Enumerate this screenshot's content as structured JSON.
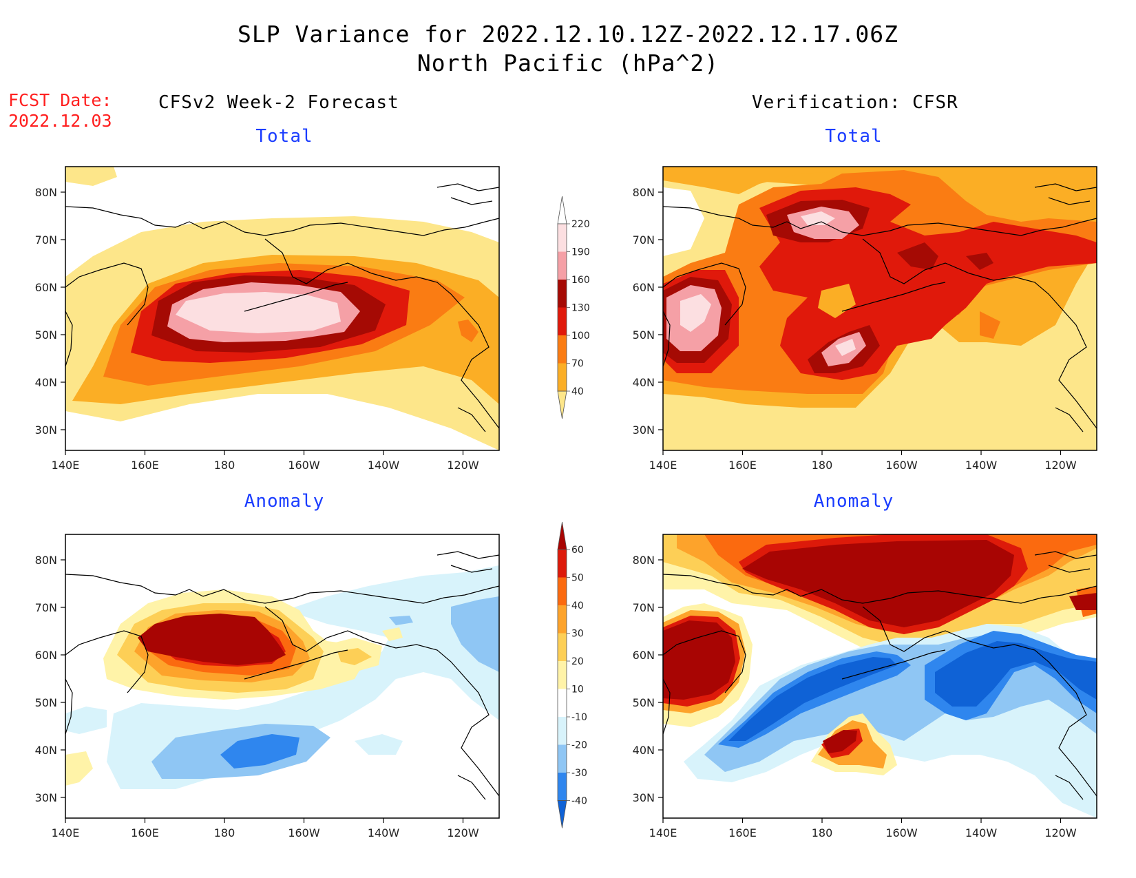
{
  "title": {
    "line1": "SLP Variance for 2022.12.10.12Z-2022.12.17.06Z",
    "line2": "North Pacific (hPa^2)"
  },
  "fcst": {
    "label": "FCST Date:",
    "date": "2022.12.03"
  },
  "columns": {
    "left": "CFSv2 Week-2 Forecast",
    "right": "Verification: CFSR"
  },
  "panels": {
    "fcst_total": "Total",
    "verif_total": "Total",
    "fcst_anom": "Anomaly",
    "verif_anom": "Anomaly"
  },
  "axes": {
    "lon_labels": [
      "140E",
      "160E",
      "180",
      "160W",
      "140W",
      "120W"
    ],
    "lat_labels": [
      "80N",
      "70N",
      "60N",
      "50N",
      "40N",
      "30N"
    ]
  },
  "colorbars": {
    "total": {
      "levels": [
        "40",
        "70",
        "100",
        "130",
        "160",
        "190",
        "220"
      ],
      "colors": [
        "#fde68a",
        "#fbae25",
        "#fa7c13",
        "#e0190b",
        "#a50a04",
        "#f5a0a6",
        "#fcdfe1",
        "#ffffff"
      ]
    },
    "anomaly": {
      "levels": [
        "-40",
        "-30",
        "-20",
        "-10",
        "10",
        "20",
        "30",
        "40",
        "50",
        "60"
      ],
      "colors": [
        "#0f62d6",
        "#2f86ee",
        "#8fc6f4",
        "#d8f3fb",
        "#ffffff",
        "#fff3a8",
        "#fdcf56",
        "#fda32b",
        "#fb6a0f",
        "#dd1a0a",
        "#a80503"
      ]
    }
  }
}
